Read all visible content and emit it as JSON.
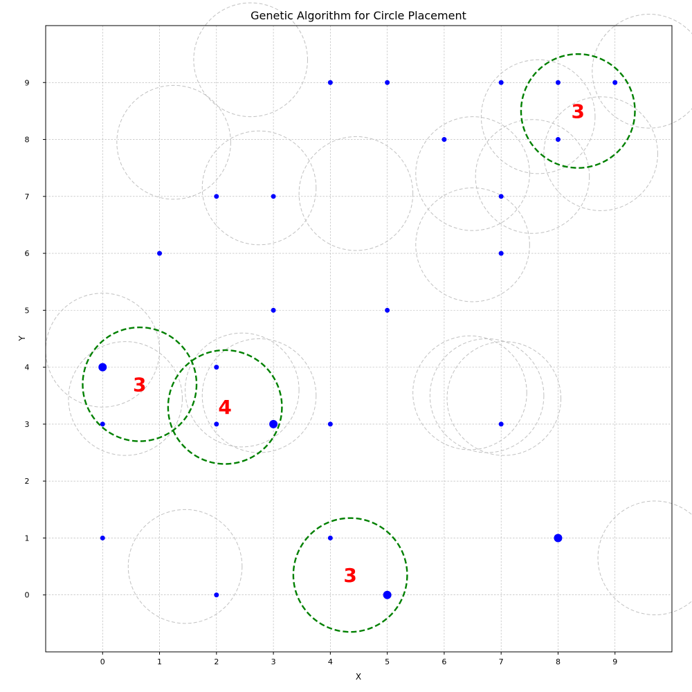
{
  "chart_data": {
    "type": "scatter",
    "title": "Genetic Algorithm for Circle Placement",
    "xlabel": "X",
    "ylabel": "Y",
    "xlim": [
      -1,
      10
    ],
    "ylim": [
      -1,
      10
    ],
    "xticks": [
      0,
      1,
      2,
      3,
      4,
      5,
      6,
      7,
      8,
      9
    ],
    "yticks": [
      0,
      1,
      2,
      3,
      4,
      5,
      6,
      7,
      8,
      9
    ],
    "grid": true,
    "radius": 1,
    "point_color": "#0000ff",
    "candidate_circle_color": "#c0c0c0",
    "best_circle_color": "#008000",
    "count_label_color": "#ff0000",
    "points": [
      {
        "x": 0,
        "y": 4,
        "highlight": true
      },
      {
        "x": 3,
        "y": 3,
        "highlight": true
      },
      {
        "x": 5,
        "y": 0,
        "highlight": true
      },
      {
        "x": 8,
        "y": 1,
        "highlight": true
      },
      {
        "x": 4,
        "y": 9
      },
      {
        "x": 5,
        "y": 9
      },
      {
        "x": 7,
        "y": 9
      },
      {
        "x": 8,
        "y": 9
      },
      {
        "x": 9,
        "y": 9
      },
      {
        "x": 6,
        "y": 8
      },
      {
        "x": 8,
        "y": 8
      },
      {
        "x": 2,
        "y": 7
      },
      {
        "x": 3,
        "y": 7
      },
      {
        "x": 7,
        "y": 7
      },
      {
        "x": 1,
        "y": 6
      },
      {
        "x": 7,
        "y": 6
      },
      {
        "x": 3,
        "y": 5
      },
      {
        "x": 5,
        "y": 5
      },
      {
        "x": 2,
        "y": 4
      },
      {
        "x": 0,
        "y": 3
      },
      {
        "x": 2,
        "y": 3
      },
      {
        "x": 4,
        "y": 3
      },
      {
        "x": 7,
        "y": 3
      },
      {
        "x": 0,
        "y": 1
      },
      {
        "x": 4,
        "y": 1
      },
      {
        "x": 2,
        "y": 0
      }
    ],
    "candidate_circles": [
      {
        "x": 2.6,
        "y": 9.4
      },
      {
        "x": 1.25,
        "y": 7.95
      },
      {
        "x": 2.75,
        "y": 7.15
      },
      {
        "x": 4.45,
        "y": 7.05
      },
      {
        "x": 6.5,
        "y": 7.4
      },
      {
        "x": 7.55,
        "y": 7.35
      },
      {
        "x": 7.65,
        "y": 8.4
      },
      {
        "x": 8.75,
        "y": 7.75
      },
      {
        "x": 9.6,
        "y": 9.2
      },
      {
        "x": 6.5,
        "y": 6.15
      },
      {
        "x": 0.0,
        "y": 4.3
      },
      {
        "x": 0.4,
        "y": 3.45
      },
      {
        "x": 2.45,
        "y": 3.6
      },
      {
        "x": 2.75,
        "y": 3.5
      },
      {
        "x": 6.45,
        "y": 3.55
      },
      {
        "x": 6.75,
        "y": 3.5
      },
      {
        "x": 7.05,
        "y": 3.45
      },
      {
        "x": 1.45,
        "y": 0.5
      },
      {
        "x": 9.7,
        "y": 0.65
      }
    ],
    "best_circles": [
      {
        "x": 0.65,
        "y": 3.7,
        "count": "3"
      },
      {
        "x": 2.15,
        "y": 3.3,
        "count": "4"
      },
      {
        "x": 8.35,
        "y": 8.5,
        "count": "3"
      },
      {
        "x": 4.35,
        "y": 0.35,
        "count": "3"
      }
    ]
  }
}
